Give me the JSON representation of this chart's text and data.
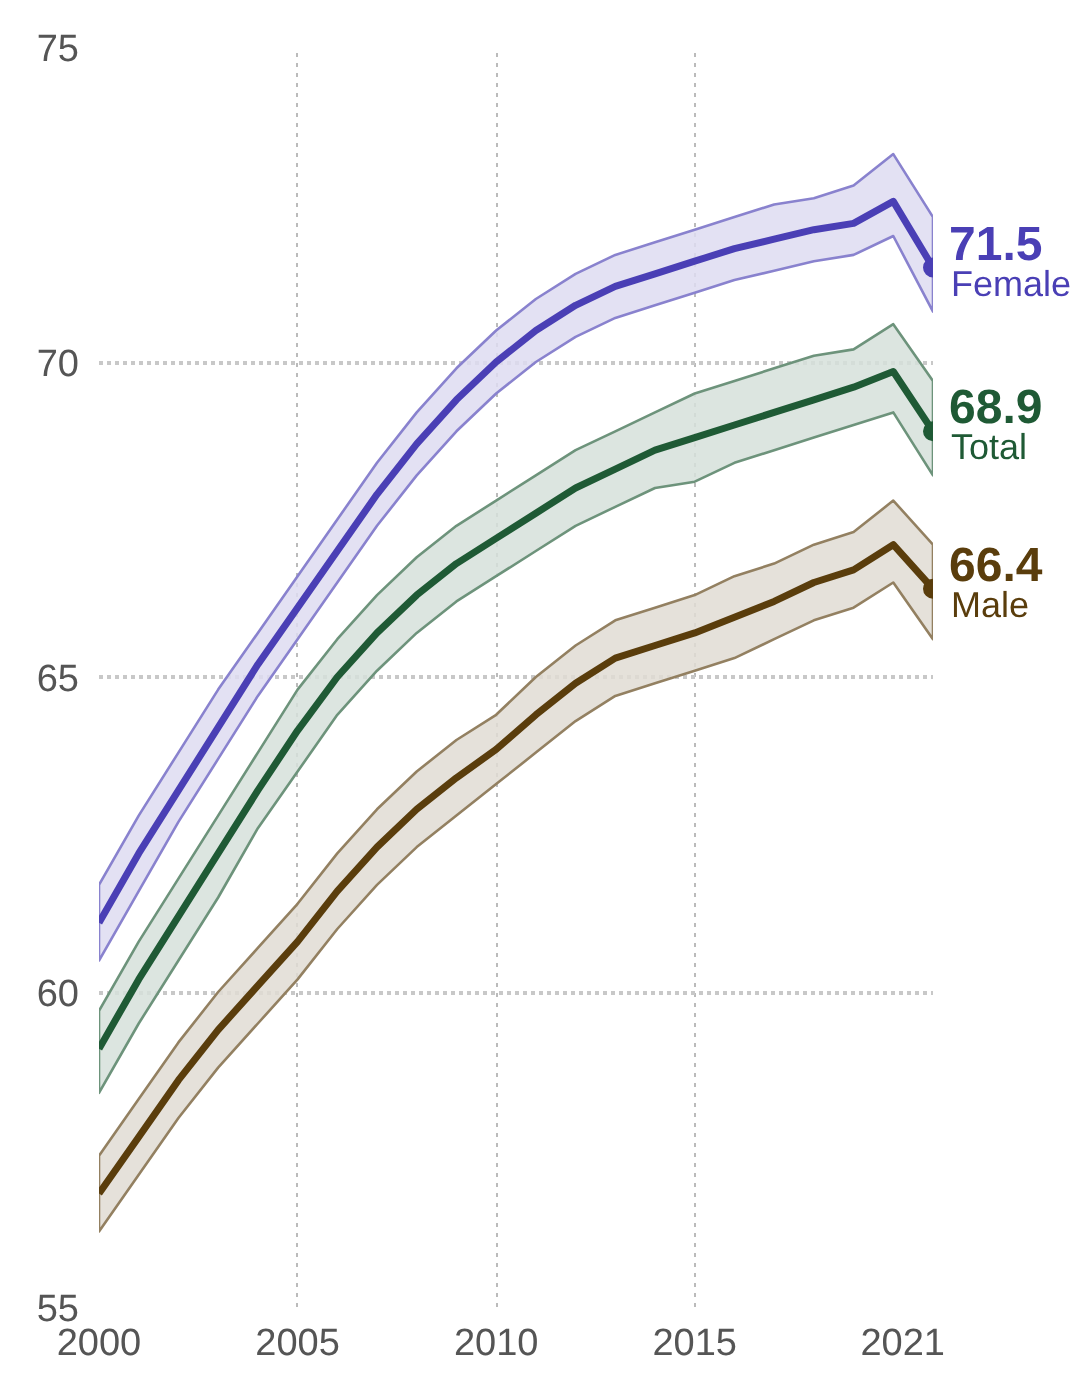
{
  "chart_data": {
    "type": "line",
    "x": [
      2000,
      2001,
      2002,
      2003,
      2004,
      2005,
      2006,
      2007,
      2008,
      2009,
      2010,
      2011,
      2012,
      2013,
      2014,
      2015,
      2016,
      2017,
      2018,
      2019,
      2020,
      2021
    ],
    "xlim": [
      2000,
      2021
    ],
    "xticks": [
      2000,
      2005,
      2010,
      2015,
      2021
    ],
    "ylim": [
      55,
      75
    ],
    "yticks": [
      55,
      60,
      65,
      70,
      75
    ],
    "grid": true,
    "series": [
      {
        "name": "Female",
        "color": "#4a3fb5",
        "values": [
          61.1,
          62.2,
          63.2,
          64.2,
          65.2,
          66.1,
          67.0,
          67.9,
          68.7,
          69.4,
          70.0,
          70.5,
          70.9,
          71.2,
          71.4,
          71.6,
          71.8,
          71.95,
          72.1,
          72.2,
          72.55,
          71.5
        ],
        "lower": [
          60.5,
          61.6,
          62.7,
          63.7,
          64.7,
          65.6,
          66.5,
          67.4,
          68.2,
          68.9,
          69.5,
          70.0,
          70.4,
          70.7,
          70.9,
          71.1,
          71.3,
          71.45,
          71.6,
          71.7,
          72.0,
          70.8
        ],
        "upper": [
          61.7,
          62.8,
          63.8,
          64.8,
          65.7,
          66.6,
          67.5,
          68.4,
          69.2,
          69.9,
          70.5,
          71.0,
          71.4,
          71.7,
          71.9,
          72.1,
          72.3,
          72.5,
          72.6,
          72.8,
          73.3,
          72.3
        ],
        "value_labels": [
          null,
          null,
          null,
          null,
          null,
          null,
          null,
          null,
          null,
          null,
          null,
          null,
          null,
          null,
          null,
          null,
          null,
          null,
          null,
          null,
          null,
          "71.5"
        ]
      },
      {
        "name": "Total",
        "color": "#1f5a35",
        "values": [
          59.1,
          60.2,
          61.2,
          62.2,
          63.2,
          64.15,
          65.0,
          65.7,
          66.3,
          66.8,
          67.2,
          67.6,
          68.0,
          68.3,
          68.6,
          68.8,
          69.0,
          69.2,
          69.4,
          69.6,
          69.85,
          68.9
        ],
        "lower": [
          58.4,
          59.5,
          60.5,
          61.5,
          62.6,
          63.5,
          64.4,
          65.1,
          65.7,
          66.2,
          66.6,
          67.0,
          67.4,
          67.7,
          68.0,
          68.1,
          68.4,
          68.6,
          68.8,
          69.0,
          69.2,
          68.2
        ],
        "upper": [
          59.7,
          60.8,
          61.8,
          62.8,
          63.8,
          64.8,
          65.6,
          66.3,
          66.9,
          67.4,
          67.8,
          68.2,
          68.6,
          68.9,
          69.2,
          69.5,
          69.7,
          69.9,
          70.1,
          70.2,
          70.6,
          69.7
        ],
        "value_labels": [
          null,
          null,
          null,
          null,
          null,
          null,
          null,
          null,
          null,
          null,
          null,
          null,
          null,
          null,
          null,
          null,
          null,
          null,
          null,
          null,
          null,
          "68.9"
        ]
      },
      {
        "name": "Male",
        "color": "#5a3d0c",
        "values": [
          56.8,
          57.7,
          58.6,
          59.4,
          60.1,
          60.8,
          61.6,
          62.3,
          62.9,
          63.4,
          63.85,
          64.4,
          64.9,
          65.3,
          65.5,
          65.7,
          65.95,
          66.2,
          66.5,
          66.7,
          67.1,
          66.4
        ],
        "lower": [
          56.2,
          57.1,
          58.0,
          58.8,
          59.5,
          60.2,
          61.0,
          61.7,
          62.3,
          62.8,
          63.3,
          63.8,
          64.3,
          64.7,
          64.9,
          65.1,
          65.3,
          65.6,
          65.9,
          66.1,
          66.5,
          65.6
        ],
        "upper": [
          57.4,
          58.3,
          59.2,
          60.0,
          60.7,
          61.4,
          62.2,
          62.9,
          63.5,
          64.0,
          64.4,
          65.0,
          65.5,
          65.9,
          66.1,
          66.3,
          66.6,
          66.8,
          67.1,
          67.3,
          67.8,
          67.1
        ],
        "value_labels": [
          null,
          null,
          null,
          null,
          null,
          null,
          null,
          null,
          null,
          null,
          null,
          null,
          null,
          null,
          null,
          null,
          null,
          null,
          null,
          null,
          null,
          "66.4"
        ]
      }
    ]
  }
}
